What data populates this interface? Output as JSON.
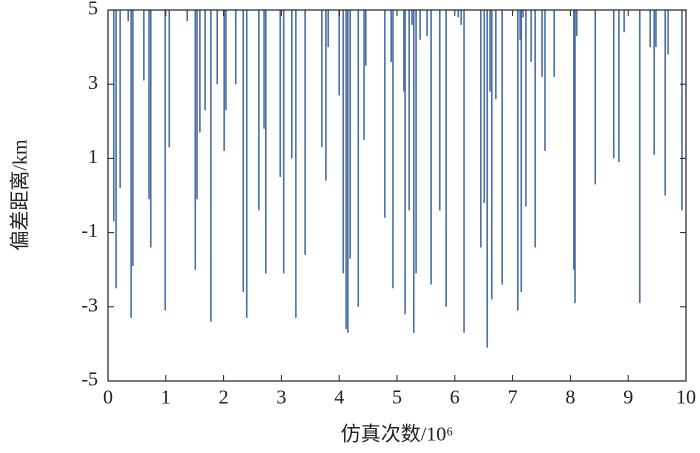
{
  "chart_data": {
    "type": "spike",
    "x_label": "仿真次数/10⁶",
    "y_label": "偏差距离/km",
    "color": "#4a6fa5",
    "xlim": [
      0,
      10
    ],
    "xticks": [
      0,
      1,
      2,
      3,
      4,
      5,
      6,
      7,
      8,
      9,
      10
    ],
    "ylim": [
      -5,
      5
    ],
    "yticks": [
      -5,
      -3,
      -1,
      1,
      3,
      5
    ],
    "x": [
      0.1,
      0.14,
      0.21,
      0.35,
      0.4,
      0.43,
      0.62,
      0.71,
      0.74,
      0.99,
      1.06,
      1.37,
      1.51,
      1.54,
      1.59,
      1.68,
      1.78,
      1.89,
      2.01,
      2.04,
      2.21,
      2.34,
      2.4,
      2.61,
      2.7,
      2.73,
      2.98,
      3.04,
      3.18,
      3.25,
      3.41,
      3.7,
      3.77,
      3.81,
      4.0,
      4.07,
      4.12,
      4.15,
      4.19,
      4.33,
      4.43,
      4.46,
      4.79,
      4.9,
      4.93,
      5.12,
      5.14,
      5.21,
      5.26,
      5.29,
      5.33,
      5.4,
      5.52,
      5.59,
      5.74,
      5.85,
      6.06,
      6.11,
      6.16,
      6.45,
      6.51,
      6.56,
      6.61,
      6.64,
      6.71,
      6.82,
      7.09,
      7.13,
      7.15,
      7.18,
      7.23,
      7.32,
      7.39,
      7.51,
      7.56,
      7.72,
      8.06,
      8.08,
      8.11,
      8.43,
      8.75,
      8.84,
      8.93,
      9.2,
      9.38,
      9.45,
      9.48,
      9.64,
      9.69,
      9.93
    ],
    "values": [
      -0.7,
      -2.5,
      0.2,
      4.7,
      -3.3,
      -1.9,
      3.1,
      -0.1,
      -1.4,
      -3.1,
      1.3,
      4.7,
      -2.0,
      -0.1,
      1.7,
      2.3,
      -3.4,
      3.0,
      1.2,
      2.3,
      3.0,
      -2.6,
      -3.3,
      -0.4,
      1.8,
      -2.1,
      0.5,
      -2.1,
      1.0,
      -3.3,
      -1.6,
      1.3,
      0.4,
      4.0,
      2.7,
      -2.1,
      -3.6,
      -3.7,
      -1.7,
      -3.0,
      1.5,
      3.5,
      -0.6,
      3.6,
      -2.5,
      2.8,
      -3.2,
      -0.4,
      4.6,
      -3.7,
      -2.1,
      4.2,
      4.3,
      -2.4,
      -0.4,
      -3.0,
      4.8,
      4.6,
      -3.7,
      -1.4,
      -0.2,
      -4.1,
      2.8,
      -2.8,
      2.6,
      -2.4,
      -3.1,
      4.2,
      -2.6,
      4.8,
      -0.3,
      3.6,
      -1.4,
      3.2,
      1.2,
      3.2,
      -2.0,
      -2.9,
      4.3,
      0.3,
      1.0,
      0.9,
      4.4,
      -2.9,
      4.0,
      1.1,
      4.0,
      0.0,
      3.8,
      -0.4
    ]
  }
}
